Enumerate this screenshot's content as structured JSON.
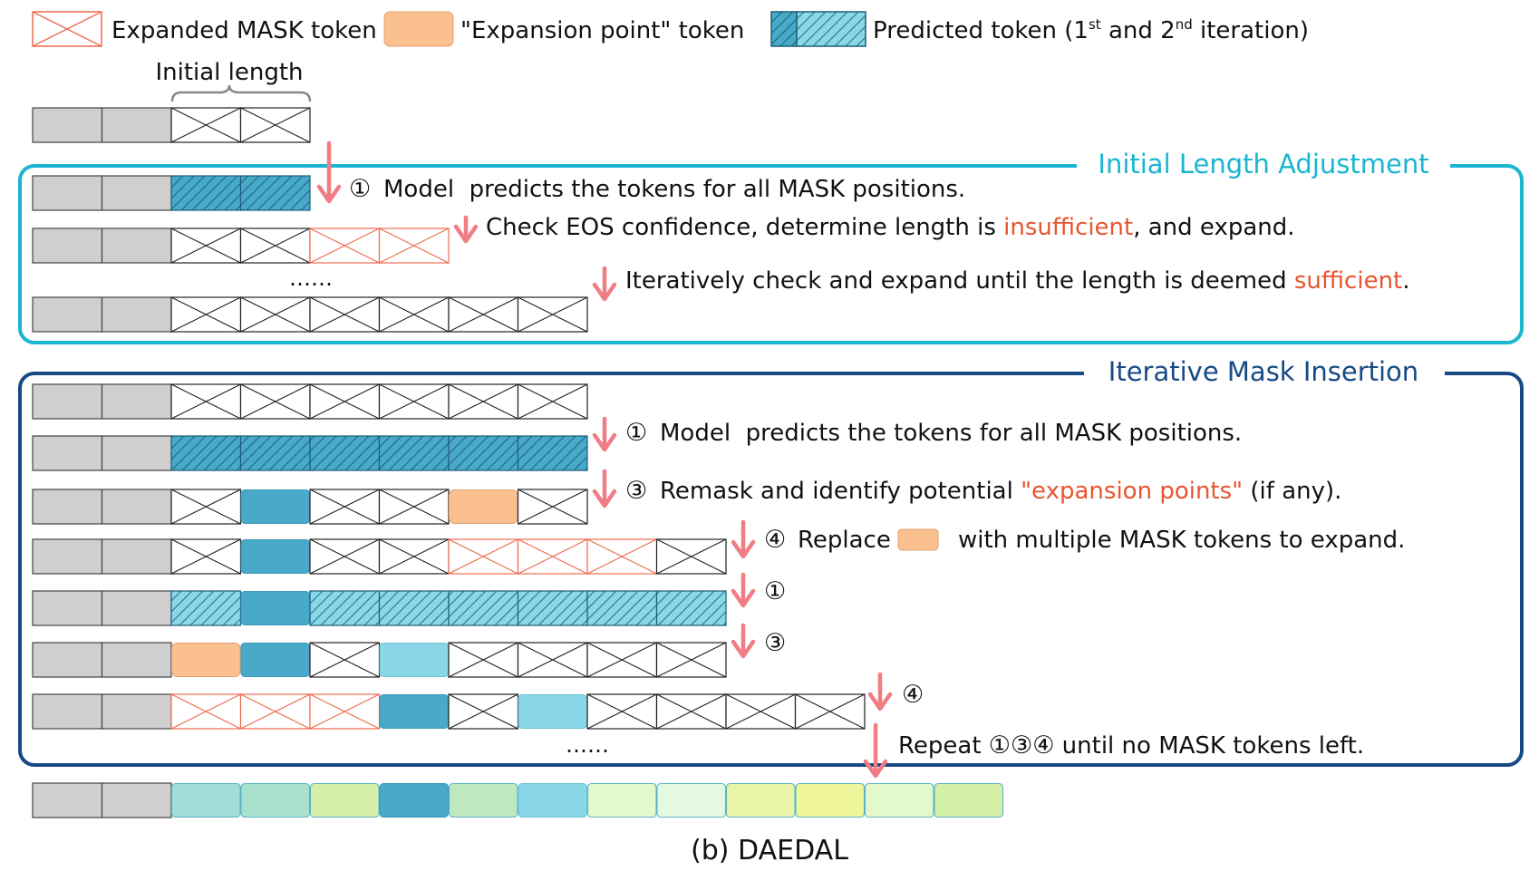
{
  "legend": {
    "expanded_mask": "Expanded MASK token",
    "expansion_point": "\"Expansion point\" token",
    "predicted_main": "Predicted token (1",
    "predicted_sup1": "st",
    "predicted_mid": " and 2",
    "predicted_sup2": "nd",
    "predicted_end": " iteration)"
  },
  "initial_length_label": "Initial length",
  "section1": {
    "title": "Initial Length Adjustment",
    "steps": [
      {
        "num": "①",
        "text": "Model  predicts the tokens for all MASK positions."
      },
      {
        "pre": "Check EOS confidence, determine length is ",
        "highlight": "insufficient",
        "post": ", and expand."
      },
      {
        "pre": "Iteratively check and expand until the length is deemed ",
        "highlight": "sufficient",
        "post": "."
      }
    ],
    "ellipsis": "……"
  },
  "section2": {
    "title": "Iterative Mask Insertion",
    "steps": [
      {
        "num": "①",
        "text": "Model  predicts the tokens for all MASK positions."
      },
      {
        "num": "③",
        "pre": "Remask and identify potential ",
        "highlight": "\"expansion points\"",
        "post": " (if any)."
      },
      {
        "num": "④",
        "pre": "Replace",
        "post": "with multiple MASK tokens to expand."
      },
      {
        "num": "①"
      },
      {
        "num": "③"
      },
      {
        "num": "④"
      },
      {
        "pre": "Repeat ",
        "nums": "①③④",
        "post": " until no MASK tokens left."
      }
    ],
    "ellipsis": "……"
  },
  "caption": "(b) DAEDAL",
  "colors": {
    "prompt_gray": "#cfcfcf",
    "expanded_red": "#ee6a4d",
    "expansion_orange": "#fbc08f",
    "predicted_dark": "#48a9c9",
    "predicted_light": "#8ad7e8",
    "section1_border": "#1ab5d0",
    "section2_border": "#174a84",
    "arrow": "#f07c84",
    "highlight_text": "#e8552e"
  },
  "rows": [
    [
      "p",
      "p",
      "m",
      "m"
    ],
    [
      "p",
      "p",
      "hd",
      "hd"
    ],
    [
      "p",
      "p",
      "m",
      "m",
      "e",
      "e"
    ],
    [
      "p",
      "p",
      "m",
      "m",
      "m",
      "m",
      "m",
      "m"
    ],
    [
      "p",
      "p",
      "m",
      "m",
      "m",
      "m",
      "m",
      "m"
    ],
    [
      "p",
      "p",
      "hd",
      "hd",
      "hd",
      "hd",
      "hd",
      "hd"
    ],
    [
      "p",
      "p",
      "m",
      "d",
      "m",
      "m",
      "o",
      "m"
    ],
    [
      "p",
      "p",
      "m",
      "d",
      "m",
      "m",
      "e",
      "e",
      "e",
      "m"
    ],
    [
      "p",
      "p",
      "hl",
      "d",
      "hl",
      "hl",
      "hl",
      "hl",
      "hl",
      "hl"
    ],
    [
      "p",
      "p",
      "o",
      "d",
      "m",
      "l",
      "m",
      "m",
      "m",
      "m"
    ],
    [
      "p",
      "p",
      "e",
      "e",
      "e",
      "d",
      "m",
      "l",
      "m",
      "m",
      "m",
      "m"
    ],
    [
      "p",
      "p",
      "f1",
      "f2",
      "f3",
      "d",
      "f4",
      "l",
      "f5",
      "f6",
      "f7",
      "f8",
      "f5",
      "f3"
    ]
  ],
  "final_fills": {
    "f1": "#a2ded9",
    "f2": "#a8e2cc",
    "f3": "#d5f1a8",
    "f4": "#bde8c0",
    "f5": "#e4f8cd",
    "f6": "#e3f9e2",
    "f7": "#e8f5a8",
    "f8": "#eef59a"
  }
}
